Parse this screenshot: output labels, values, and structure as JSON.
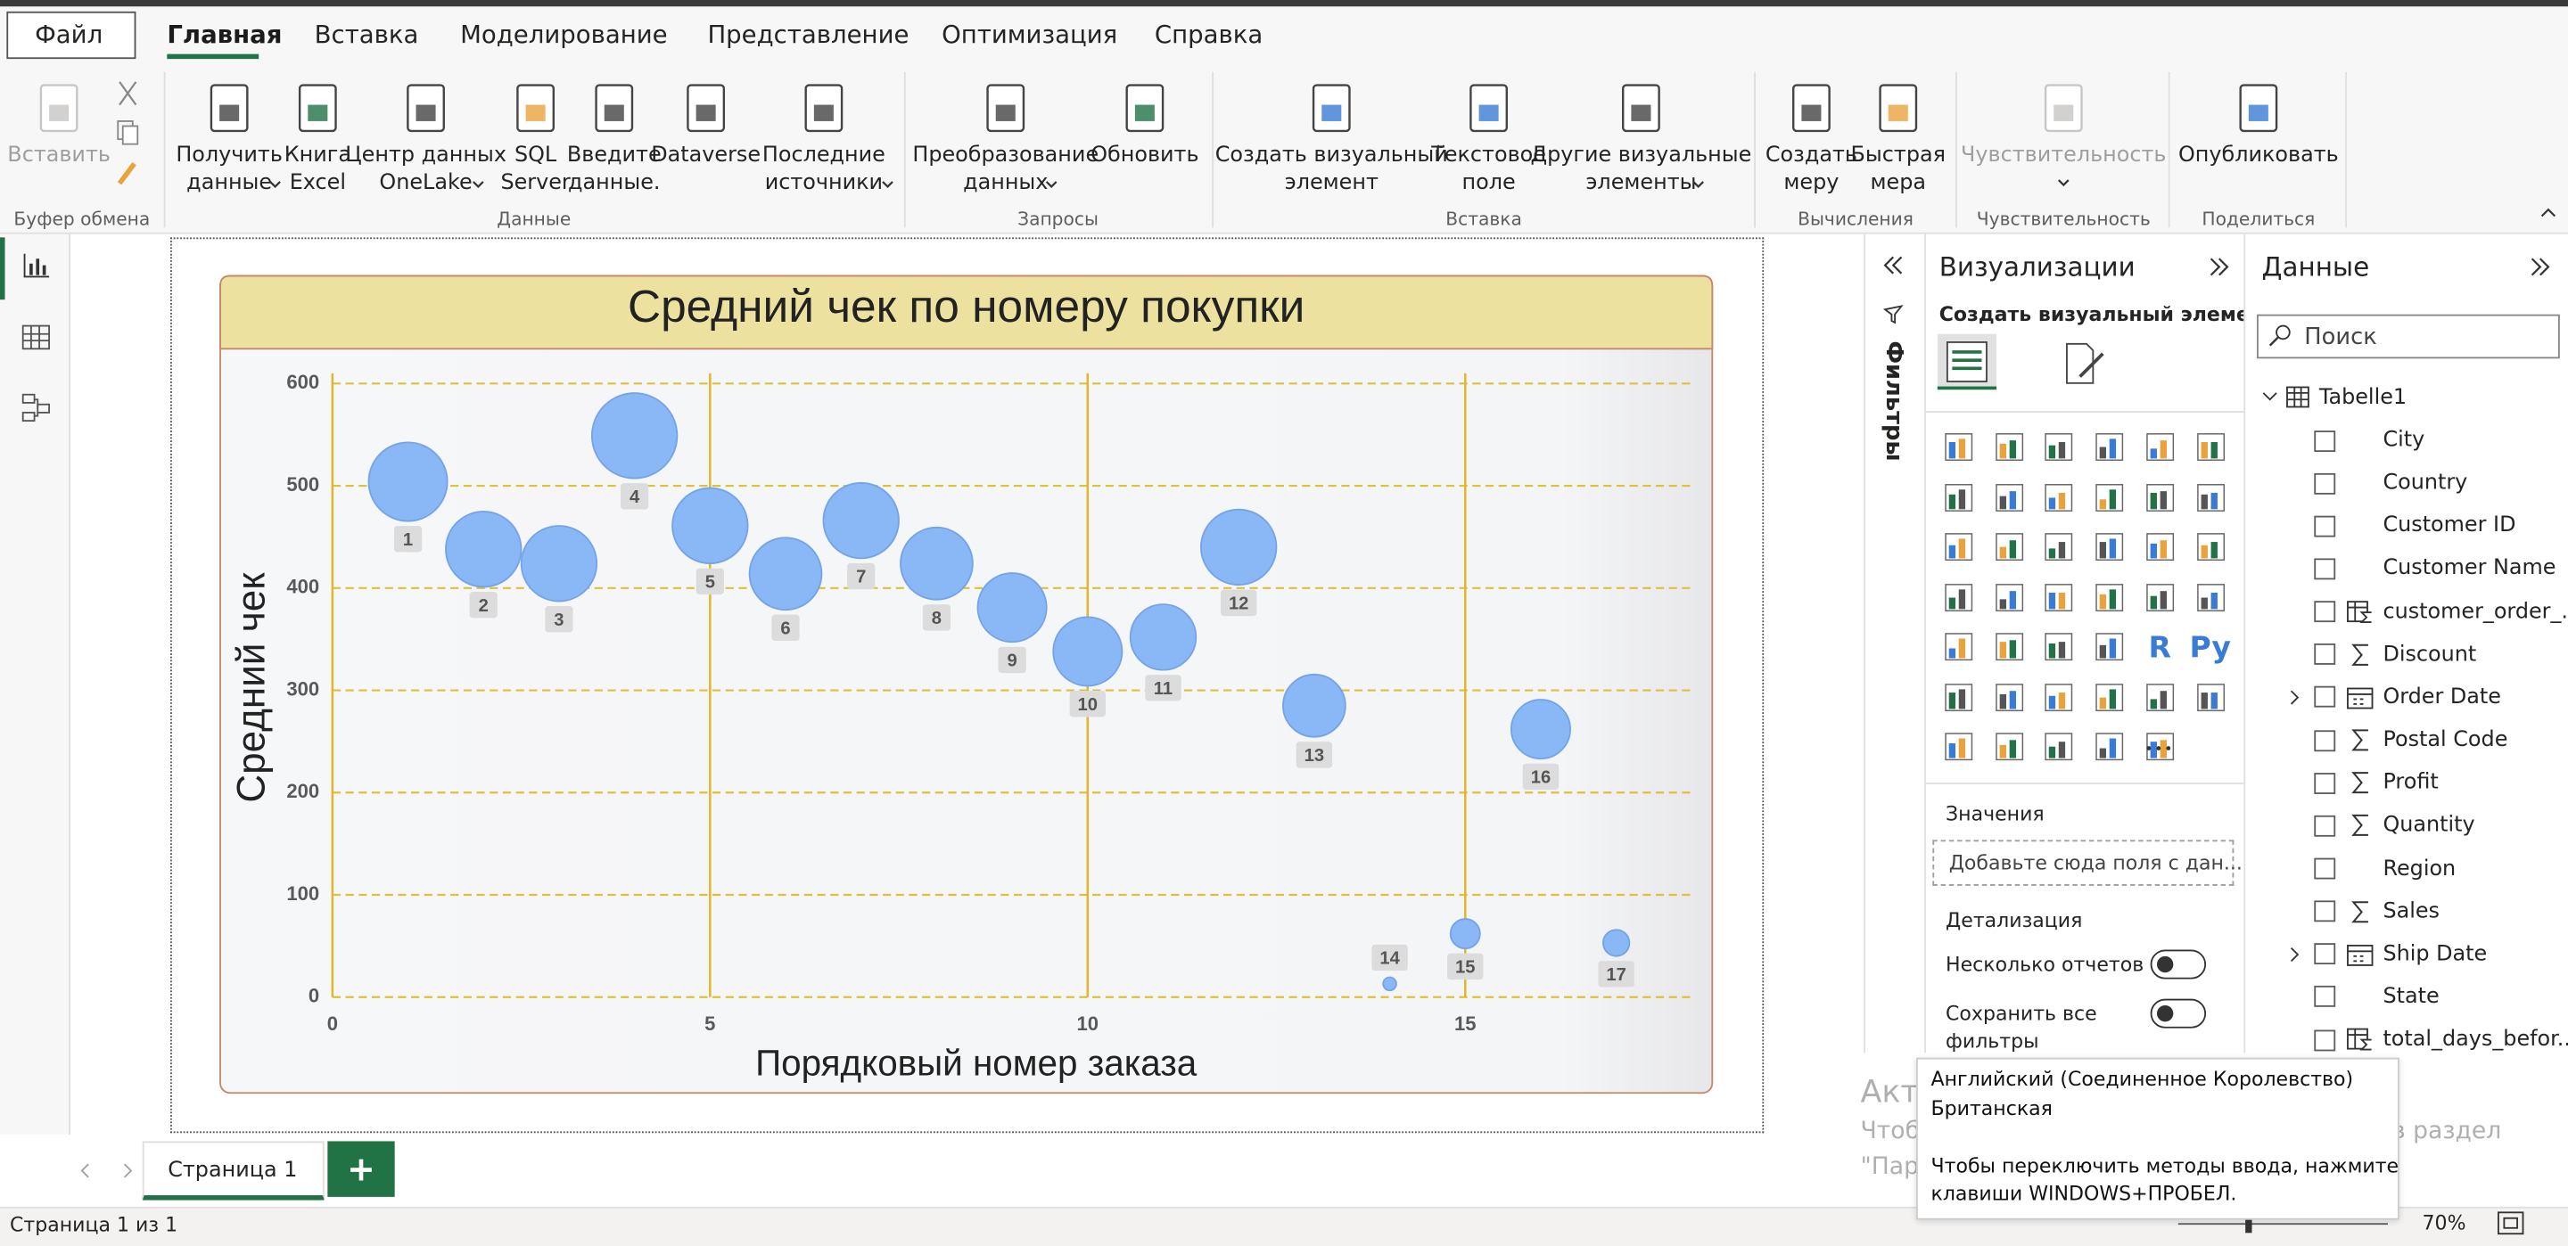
{
  "menu": {
    "file": "Файл",
    "tabs": [
      "Главная",
      "Вставка",
      "Моделирование",
      "Представление",
      "Оптимизация",
      "Справка"
    ]
  },
  "ribbon": {
    "buttons": [
      [
        "Вставить"
      ],
      [
        "Получить",
        "данные"
      ],
      [
        "Книга",
        "Excel"
      ],
      [
        "Центр данных",
        "OneLake"
      ],
      [
        "SQL",
        "Server"
      ],
      [
        "Введите",
        "данные."
      ],
      [
        "Dataverse"
      ],
      [
        "Последние",
        "источники"
      ],
      [
        "Преобразование",
        "данных"
      ],
      [
        "Обновить"
      ],
      [
        "Создать визуальный",
        "элемент"
      ],
      [
        "Текстовое",
        "поле"
      ],
      [
        "Другие визуальные",
        "элементы"
      ],
      [
        "Создать",
        "меру"
      ],
      [
        "Быстрая",
        "мера"
      ],
      [
        "Чувствительность"
      ],
      [
        "Опубликовать"
      ]
    ],
    "groups": [
      "Буфер обмена",
      "Данные",
      "Запросы",
      "Вставка",
      "Вычисления",
      "Чувствительность",
      "Поделиться"
    ]
  },
  "chart_data": {
    "type": "scatter",
    "title": "Средний чек по номеру покупки",
    "x_label": "Порядковый номер заказа",
    "y_label": "Средний чек",
    "x": [
      1,
      2,
      3,
      4,
      5,
      6,
      7,
      8,
      9,
      10,
      11,
      12,
      13,
      14,
      15,
      16,
      17
    ],
    "values": [
      504,
      438,
      424,
      549,
      461,
      414,
      466,
      424,
      381,
      338,
      352,
      440,
      285,
      13,
      62,
      262,
      53
    ],
    "sizes": [
      576,
      529,
      529,
      676,
      529,
      484,
      529,
      484,
      441,
      441,
      400,
      529,
      361,
      16,
      81,
      324,
      64
    ],
    "color": "#8ab8f7",
    "xlim": [
      0,
      18
    ],
    "ylim": [
      0,
      610
    ],
    "xticks": [
      0,
      5,
      10,
      15
    ],
    "yticks": [
      0,
      100,
      200,
      300,
      400,
      500,
      600
    ],
    "grid": true
  },
  "filters": "Фильтры",
  "visualizations": {
    "title": "Визуализации",
    "subtitle": "Создать визуальный элемент",
    "icon_letters": [
      "R",
      "Py"
    ],
    "values_label": "Значения",
    "values_placeholder": "Добавьте сюда поля с дан...",
    "drillthrough": "Детализация",
    "cross_report": "Несколько отчетов",
    "keep_filters": [
      "Сохранить все",
      "фильтры"
    ]
  },
  "data_pane": {
    "title": "Данные",
    "search": "Поиск",
    "table": "Tabelle1",
    "fields": [
      {
        "name": "City",
        "kind": "text"
      },
      {
        "name": "Country",
        "kind": "text"
      },
      {
        "name": "Customer ID",
        "kind": "text"
      },
      {
        "name": "Customer Name",
        "kind": "text"
      },
      {
        "name": "customer_order_...",
        "kind": "calc"
      },
      {
        "name": "Discount",
        "kind": "sum"
      },
      {
        "name": "Order Date",
        "kind": "date"
      },
      {
        "name": "Postal Code",
        "kind": "sum"
      },
      {
        "name": "Profit",
        "kind": "sum"
      },
      {
        "name": "Quantity",
        "kind": "sum"
      },
      {
        "name": "Region",
        "kind": "text"
      },
      {
        "name": "Sales",
        "kind": "sum"
      },
      {
        "name": "Ship Date",
        "kind": "date"
      },
      {
        "name": "State",
        "kind": "text"
      },
      {
        "name": "total_days_befor...",
        "kind": "calc"
      }
    ]
  },
  "pages": {
    "tab": "Страница 1"
  },
  "status": {
    "page": "Страница 1 из 1",
    "zoom": "70%"
  },
  "watermark": [
    "Активация Windows",
    "Чтобы активировать Windows, перейдите в раздел",
    "\"Параметры\"."
  ],
  "tooltip": [
    "Английский (Соединенное Королевство)",
    "Британская",
    "Чтобы переключить методы ввода, нажмите",
    "клавиши WINDOWS+ПРОБЕЛ."
  ]
}
